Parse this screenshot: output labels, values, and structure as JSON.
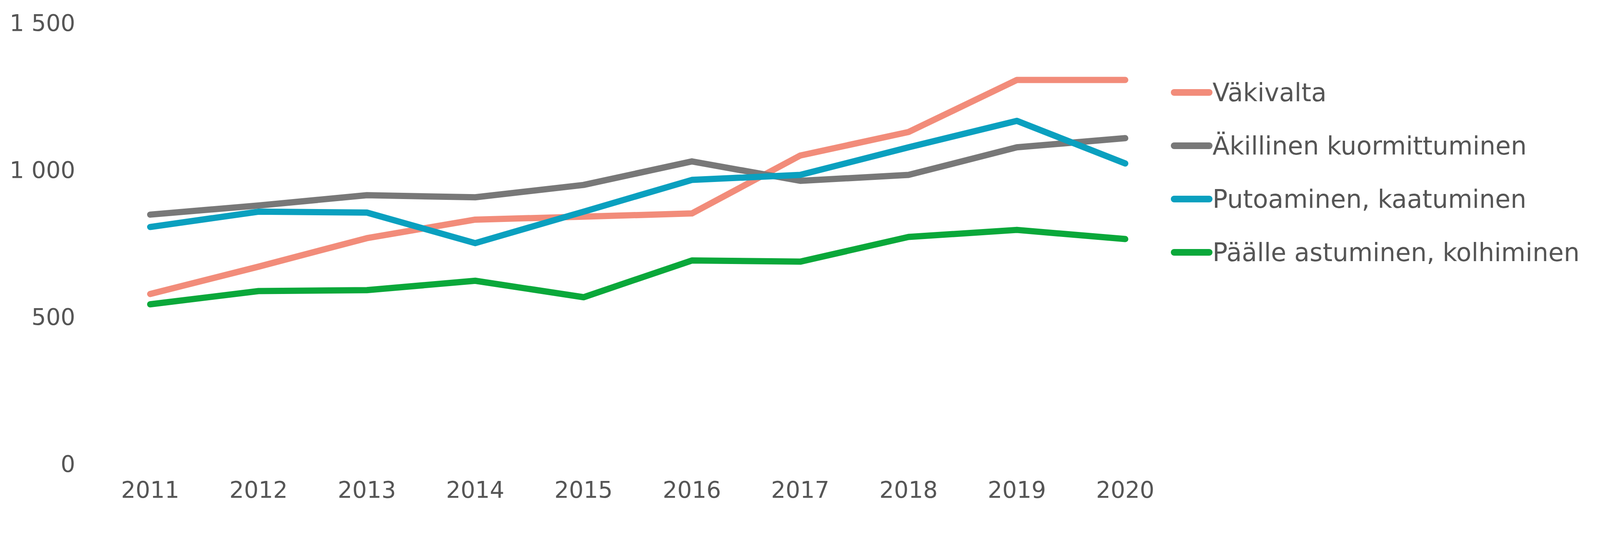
{
  "chart_data": {
    "type": "line",
    "x": [
      2011,
      2012,
      2013,
      2014,
      2015,
      2016,
      2017,
      2018,
      2019,
      2020
    ],
    "xlim": [
      2011,
      2020
    ],
    "xticks": [
      2011,
      2012,
      2013,
      2014,
      2015,
      2016,
      2017,
      2018,
      2019,
      2020
    ],
    "ylim": [
      0,
      1500
    ],
    "yticks": [
      0,
      500,
      {
        "value": 1000,
        "label": "1 000"
      },
      {
        "value": 1500,
        "label": "1 500"
      }
    ],
    "grid": false,
    "legend": "right",
    "series": [
      {
        "name": "Väkivalta",
        "color": "#f28c7a",
        "values": [
          580,
          673,
          770,
          833,
          843,
          854,
          1051,
          1131,
          1308,
          1308
        ]
      },
      {
        "name": "Äkillinen kuormittuminen",
        "color": "#787878",
        "values": [
          850,
          881,
          916,
          909,
          951,
          1031,
          965,
          985,
          1079,
          1110
        ]
      },
      {
        "name": "Putoaminen, kaatuminen",
        "color": "#0aa0bf",
        "values": [
          808,
          860,
          857,
          753,
          860,
          968,
          985,
          1079,
          1169,
          1024
        ]
      },
      {
        "name": "Päälle astuminen, kolhiminen",
        "color": "#0aa83a",
        "values": [
          545,
          590,
          593,
          625,
          569,
          694,
          690,
          774,
          798,
          767
        ]
      }
    ]
  }
}
